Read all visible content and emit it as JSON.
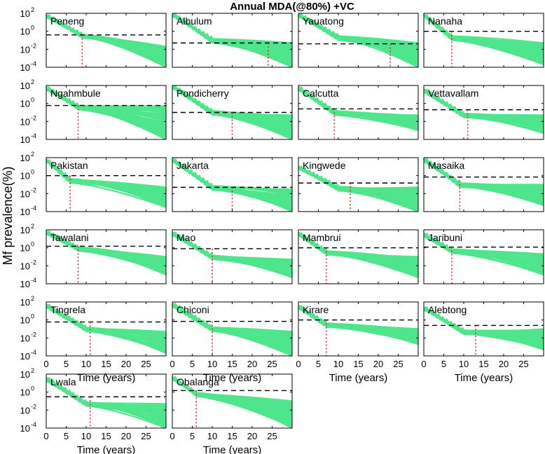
{
  "chart_data": {
    "type": "line",
    "title": "Annual MDA(@80%) +VC",
    "ylabel": "Mf prevalence(%)",
    "xlabel": "Time (years)",
    "xlim": [
      0,
      30
    ],
    "x_ticks": [
      0,
      5,
      10,
      15,
      20,
      25
    ],
    "ylim_log10": [
      -4,
      2
    ],
    "y_scale": "log",
    "y_tick_bases": [
      "10",
      "10",
      "10",
      "10"
    ],
    "y_tick_exponents": [
      "2",
      "0",
      "-2",
      "-4"
    ],
    "y_tick_values": [
      100,
      1,
      0.01,
      0.0001
    ],
    "colors": {
      "trajectories": "#4fe58c",
      "threshold": "#000000",
      "elimination_time": "#e8201c"
    },
    "panels": [
      {
        "site": "Peneng",
        "threshold": 0.4,
        "elimination_year": 9,
        "start": 50,
        "mda_floor": 0.3,
        "end_range": [
          0.0001,
          0.02
        ]
      },
      {
        "site": "Albulum",
        "threshold": 0.05,
        "elimination_year": 24,
        "start": 80,
        "mda_floor": 0.1,
        "end_range": [
          0.0001,
          0.05
        ]
      },
      {
        "site": "Yauatong",
        "threshold": 0.04,
        "elimination_year": 23,
        "start": 70,
        "mda_floor": 0.2,
        "end_range": [
          0.0001,
          0.05
        ]
      },
      {
        "site": "Nanaha",
        "threshold": 1.0,
        "elimination_year": 7,
        "start": 60,
        "mda_floor": 0.2,
        "end_range": [
          0.0002,
          0.05
        ]
      },
      {
        "site": "Ngahmbule",
        "threshold": 0.6,
        "elimination_year": 8,
        "start": 50,
        "mda_floor": 0.4,
        "end_range": [
          0.0001,
          0.5
        ]
      },
      {
        "site": "Pondicherry",
        "threshold": 0.1,
        "elimination_year": 15,
        "start": 80,
        "mda_floor": 0.1,
        "end_range": [
          0.0001,
          0.05
        ]
      },
      {
        "site": "Calcutta",
        "threshold": 0.25,
        "elimination_year": 9,
        "start": 50,
        "mda_floor": 0.1,
        "end_range": [
          0.001,
          0.05
        ]
      },
      {
        "site": "Vettavallam",
        "threshold": 0.2,
        "elimination_year": 11,
        "start": 30,
        "mda_floor": 0.05,
        "end_range": [
          0.0005,
          0.05
        ]
      },
      {
        "site": "Pakistan",
        "threshold": 1.0,
        "elimination_year": 6,
        "start": 50,
        "mda_floor": 0.3,
        "end_range": [
          0.0003,
          0.05
        ]
      },
      {
        "site": "Jakarta",
        "threshold": 0.05,
        "elimination_year": 15,
        "start": 60,
        "mda_floor": 0.05,
        "end_range": [
          0.0001,
          0.03
        ]
      },
      {
        "site": "Kingwede",
        "threshold": 0.15,
        "elimination_year": 13,
        "start": 8,
        "mda_floor": 0.04,
        "end_range": [
          0.0001,
          0.05
        ]
      },
      {
        "site": "Masaika",
        "threshold": 0.7,
        "elimination_year": 9,
        "start": 60,
        "mda_floor": 0.1,
        "end_range": [
          0.0005,
          0.1
        ]
      },
      {
        "site": "Tawalani",
        "threshold": 1.5,
        "elimination_year": 8,
        "start": 50,
        "mda_floor": 0.8,
        "end_range": [
          0.001,
          0.1
        ]
      },
      {
        "site": "Mao",
        "threshold": 0.8,
        "elimination_year": 10,
        "start": 40,
        "mda_floor": 0.1,
        "end_range": [
          0.0005,
          0.05
        ]
      },
      {
        "site": "Mambrui",
        "threshold": 1.0,
        "elimination_year": 7,
        "start": 40,
        "mda_floor": 0.3,
        "end_range": [
          0.0005,
          0.1
        ]
      },
      {
        "site": "Jaribuni",
        "threshold": 1.2,
        "elimination_year": 7,
        "start": 30,
        "mda_floor": 0.5,
        "end_range": [
          0.001,
          0.2
        ]
      },
      {
        "site": "Tingrela",
        "threshold": 0.6,
        "elimination_year": 11,
        "start": 40,
        "mda_floor": 0.1,
        "end_range": [
          0.0002,
          0.05
        ]
      },
      {
        "site": "Chiconi",
        "threshold": 0.7,
        "elimination_year": 10,
        "start": 50,
        "mda_floor": 0.1,
        "end_range": [
          0.0001,
          0.05
        ]
      },
      {
        "site": "Kirare",
        "threshold": 1.0,
        "elimination_year": 7,
        "start": 30,
        "mda_floor": 0.3,
        "end_range": [
          0.002,
          0.1
        ]
      },
      {
        "site": "Alebtong",
        "threshold": 0.25,
        "elimination_year": 13,
        "start": 20,
        "mda_floor": 0.05,
        "end_range": [
          0.0005,
          0.1
        ]
      },
      {
        "site": "Lwala",
        "threshold": 0.3,
        "elimination_year": 11,
        "start": 30,
        "mda_floor": 0.05,
        "end_range": [
          0.0001,
          0.05
        ]
      },
      {
        "site": "Obalanga",
        "threshold": 1.5,
        "elimination_year": 6,
        "start": 40,
        "mda_floor": 0.6,
        "end_range": [
          0.0001,
          0.1
        ]
      }
    ]
  }
}
